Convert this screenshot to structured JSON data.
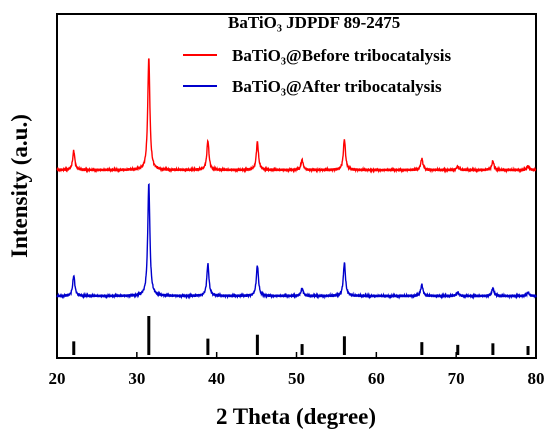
{
  "chart_data": {
    "type": "line",
    "xlabel": "2 Theta (degree)",
    "ylabel": "Intensity (a.u.)",
    "xlim": [
      20,
      80
    ],
    "x_ticks": [
      "20",
      "30",
      "40",
      "50",
      "60",
      "70",
      "80"
    ],
    "y_ticks_labeled": false,
    "grid": false,
    "legend_placement": "top-right",
    "legend_header": "BaTiO₃  JDPDF 89-2475",
    "series": [
      {
        "name": "BaTiO₃@Before tribocatalysis",
        "color": "#ff0000",
        "baseline": 1.0,
        "peaks": [
          {
            "x": 22.1,
            "h": 0.15
          },
          {
            "x": 31.5,
            "h": 0.88
          },
          {
            "x": 38.9,
            "h": 0.23
          },
          {
            "x": 45.1,
            "h": 0.22
          },
          {
            "x": 50.7,
            "h": 0.08
          },
          {
            "x": 56.0,
            "h": 0.24
          },
          {
            "x": 65.7,
            "h": 0.09
          },
          {
            "x": 70.2,
            "h": 0.03
          },
          {
            "x": 74.6,
            "h": 0.07
          },
          {
            "x": 79.0,
            "h": 0.03
          }
        ]
      },
      {
        "name": "BaTiO₃@After tribocatalysis",
        "color": "#0000cc",
        "baseline": 0.0,
        "peaks": [
          {
            "x": 22.1,
            "h": 0.16
          },
          {
            "x": 31.5,
            "h": 0.88
          },
          {
            "x": 38.9,
            "h": 0.25
          },
          {
            "x": 45.1,
            "h": 0.24
          },
          {
            "x": 50.7,
            "h": 0.06
          },
          {
            "x": 56.0,
            "h": 0.26
          },
          {
            "x": 65.7,
            "h": 0.09
          },
          {
            "x": 70.2,
            "h": 0.03
          },
          {
            "x": 74.6,
            "h": 0.06
          },
          {
            "x": 79.0,
            "h": 0.03
          }
        ]
      }
    ],
    "reference": {
      "name": "BaTiO₃  JDPDF 89-2475",
      "color": "#000000",
      "lines": [
        {
          "x": 22.1,
          "h": 0.35
        },
        {
          "x": 31.5,
          "h": 1.0
        },
        {
          "x": 38.9,
          "h": 0.42
        },
        {
          "x": 45.1,
          "h": 0.52
        },
        {
          "x": 50.7,
          "h": 0.28
        },
        {
          "x": 56.0,
          "h": 0.48
        },
        {
          "x": 65.7,
          "h": 0.33
        },
        {
          "x": 70.2,
          "h": 0.26
        },
        {
          "x": 74.6,
          "h": 0.3
        },
        {
          "x": 79.0,
          "h": 0.23
        }
      ]
    }
  }
}
